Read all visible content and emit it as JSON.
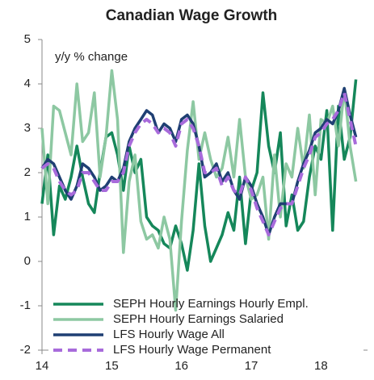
{
  "chart_data": {
    "type": "line",
    "title": "Canadian Wage Growth",
    "y_label": "y/y % change",
    "x": [
      2014.0,
      2014.083,
      2014.167,
      2014.25,
      2014.333,
      2014.417,
      2014.5,
      2014.583,
      2014.667,
      2014.75,
      2014.833,
      2014.917,
      2015.0,
      2015.083,
      2015.167,
      2015.25,
      2015.333,
      2015.417,
      2015.5,
      2015.583,
      2015.667,
      2015.75,
      2015.833,
      2015.917,
      2016.0,
      2016.083,
      2016.167,
      2016.25,
      2016.333,
      2016.417,
      2016.5,
      2016.583,
      2016.667,
      2016.75,
      2016.833,
      2016.917,
      2017.0,
      2017.083,
      2017.167,
      2017.25,
      2017.333,
      2017.417,
      2017.5,
      2017.583,
      2017.667,
      2017.75,
      2017.833,
      2017.917,
      2018.0,
      2018.083,
      2018.167,
      2018.25,
      2018.333,
      2018.417,
      2018.5
    ],
    "series": [
      {
        "name": "SEPH Hourly Earnings Hourly Empl.",
        "color": "#15875a",
        "dashed": false,
        "values": [
          1.3,
          2.4,
          0.6,
          1.7,
          1.4,
          1.9,
          2.6,
          1.9,
          1.3,
          1.1,
          2.0,
          2.8,
          2.9,
          2.4,
          1.6,
          2.6,
          2.0,
          2.3,
          1.0,
          0.8,
          0.7,
          0.4,
          0.3,
          0.8,
          0.4,
          -0.2,
          0.7,
          2.2,
          0.8,
          0.0,
          0.3,
          0.6,
          1.1,
          0.7,
          1.9,
          0.4,
          1.6,
          2.0,
          3.8,
          2.6,
          2.0,
          2.9,
          0.8,
          1.5,
          0.7,
          0.9,
          1.9,
          2.6,
          2.3,
          3.4,
          0.7,
          3.5,
          2.3,
          2.8,
          4.1
        ]
      },
      {
        "name": "SEPH Hourly Earnings Salaried",
        "color": "#8dc8a2",
        "dashed": false,
        "values": [
          3.0,
          1.3,
          3.5,
          3.4,
          2.9,
          2.4,
          4.0,
          2.7,
          2.9,
          3.8,
          1.9,
          2.8,
          4.3,
          3.2,
          0.2,
          1.8,
          2.4,
          0.9,
          0.5,
          0.6,
          0.3,
          1.0,
          0.5,
          -1.1,
          0.9,
          2.5,
          3.6,
          2.3,
          2.9,
          2.3,
          1.9,
          2.1,
          2.8,
          1.9,
          3.2,
          1.9,
          1.4,
          1.5,
          1.9,
          0.5,
          2.4,
          1.0,
          2.2,
          1.9,
          3.0,
          2.1,
          3.3,
          1.5,
          3.2,
          3.1,
          3.5,
          2.6,
          3.9,
          2.6,
          1.8
        ]
      },
      {
        "name": "LFS Hourly Wage All",
        "color": "#1f3f73",
        "dashed": false,
        "values": [
          2.1,
          2.3,
          2.2,
          1.9,
          1.6,
          1.4,
          1.7,
          2.2,
          2.1,
          1.9,
          1.6,
          1.7,
          1.9,
          1.8,
          2.1,
          2.7,
          3.0,
          3.2,
          3.4,
          3.3,
          2.9,
          3.1,
          3.0,
          2.7,
          3.2,
          3.3,
          3.1,
          2.6,
          1.9,
          2.0,
          2.2,
          1.8,
          2.0,
          1.6,
          1.4,
          1.9,
          1.7,
          1.3,
          1.0,
          0.6,
          1.0,
          1.3,
          1.3,
          1.3,
          1.8,
          2.2,
          2.5,
          2.9,
          3.0,
          3.2,
          3.1,
          3.4,
          3.9,
          3.3,
          2.8
        ]
      },
      {
        "name": "LFS Hourly Wage Permanent",
        "color": "#a86bdb",
        "dashed": true,
        "values": [
          2.1,
          2.2,
          2.1,
          1.8,
          1.6,
          1.5,
          1.6,
          2.0,
          2.0,
          1.8,
          1.6,
          1.6,
          1.8,
          1.8,
          2.0,
          2.6,
          2.9,
          3.1,
          3.2,
          3.1,
          2.9,
          3.0,
          2.9,
          2.6,
          3.1,
          3.2,
          3.0,
          2.6,
          2.0,
          2.0,
          2.1,
          1.7,
          1.9,
          1.6,
          1.5,
          1.9,
          1.6,
          1.2,
          0.9,
          0.6,
          0.9,
          1.2,
          1.3,
          1.3,
          1.7,
          2.1,
          2.4,
          2.8,
          2.9,
          3.1,
          3.2,
          3.4,
          3.8,
          3.2,
          2.6
        ]
      }
    ],
    "xlim": [
      2014,
      2018.667
    ],
    "xticks": [
      {
        "value": 2014,
        "label": "14"
      },
      {
        "value": 2015,
        "label": "15"
      },
      {
        "value": 2016,
        "label": "16"
      },
      {
        "value": 2017,
        "label": "17"
      },
      {
        "value": 2018,
        "label": "18"
      }
    ],
    "ylim": [
      -2,
      5
    ],
    "yticks": [
      -2,
      -1,
      0,
      1,
      2,
      3,
      4,
      5
    ]
  }
}
